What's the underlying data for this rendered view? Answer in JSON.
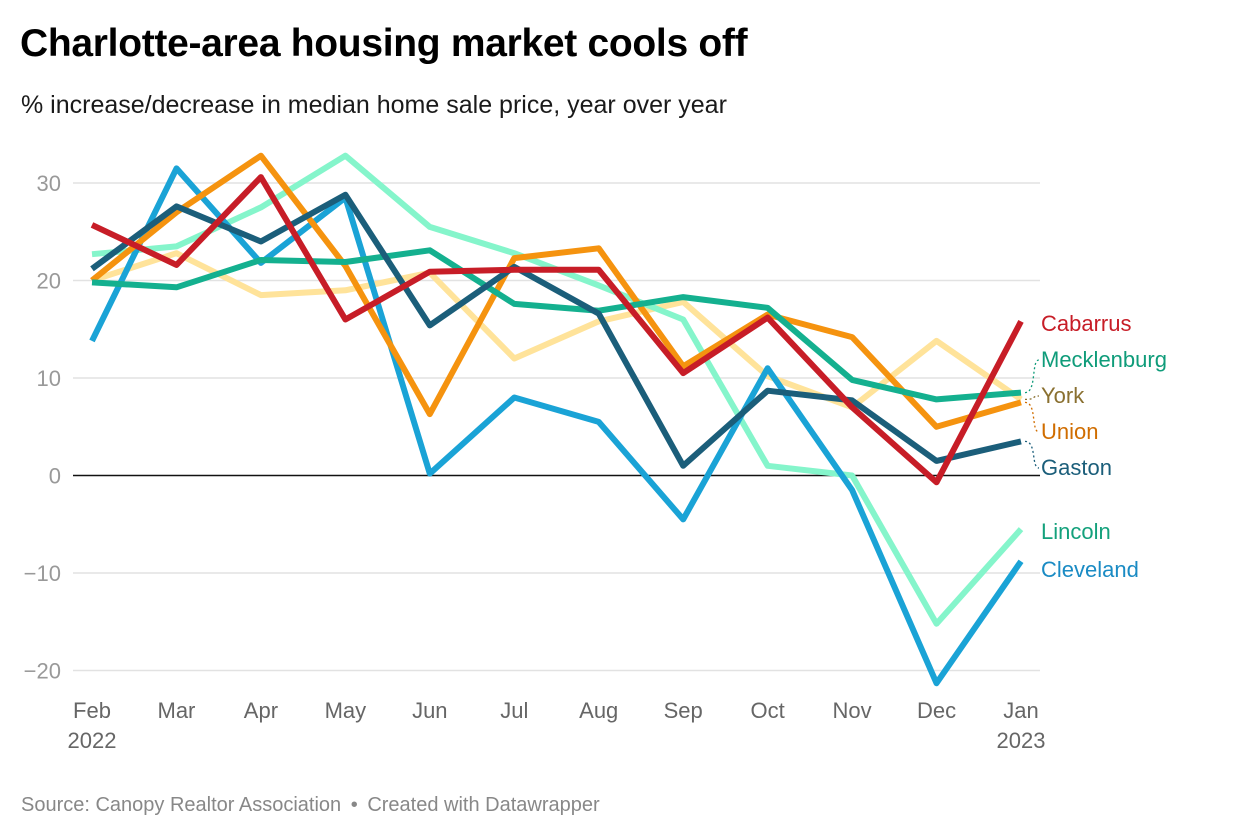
{
  "header": {
    "title": "Charlotte-area housing market cools off",
    "subtitle": "% increase/decrease in median home sale price, year over year"
  },
  "footer": {
    "source": "Source: Canopy Realtor Association",
    "separator": "•",
    "credit": "Created with Datawrapper"
  },
  "chart_data": {
    "type": "line",
    "title": "Charlotte-area housing market cools off",
    "subtitle": "% increase/decrease in median home sale price, year over year",
    "x": [
      "Feb",
      "Mar",
      "Apr",
      "May",
      "Jun",
      "Jul",
      "Aug",
      "Sep",
      "Oct",
      "Nov",
      "Dec",
      "Jan"
    ],
    "x_year_labels": {
      "first": "2022",
      "last": "2023"
    },
    "ylim": [
      -22,
      33
    ],
    "yticks": [
      30,
      20,
      10,
      0,
      -10,
      -20
    ],
    "grid": true,
    "legend": "direct labels at right end of lines",
    "series": [
      {
        "name": "York",
        "color": "#ffe39a",
        "label_color": "#8a7030",
        "values": [
          20.0,
          22.8,
          18.5,
          19.0,
          20.8,
          12.0,
          15.8,
          17.8,
          10.2,
          7.0,
          13.8,
          7.8
        ]
      },
      {
        "name": "Lincoln",
        "color": "#85f5cb",
        "label_color": "#14a17c",
        "values": [
          22.7,
          23.5,
          27.5,
          32.8,
          25.5,
          22.8,
          19.5,
          16.0,
          1.0,
          0.0,
          -15.2,
          -5.5
        ]
      },
      {
        "name": "Cleveland",
        "color": "#1aa3d6",
        "label_color": "#1a8bc4",
        "values": [
          13.8,
          31.5,
          21.8,
          28.5,
          0.2,
          8.0,
          5.5,
          -4.5,
          11.0,
          -1.5,
          -21.3,
          -8.8
        ]
      },
      {
        "name": "Union",
        "color": "#f5930f",
        "label_color": "#d06d00",
        "values": [
          20.0,
          27.0,
          32.8,
          21.5,
          6.3,
          22.3,
          23.3,
          11.2,
          16.5,
          14.2,
          5.0,
          7.5
        ]
      },
      {
        "name": "Mecklenburg",
        "color": "#14b08f",
        "label_color": "#0f9c7a",
        "values": [
          19.8,
          19.3,
          22.1,
          21.9,
          23.1,
          17.6,
          16.9,
          18.3,
          17.2,
          9.8,
          7.8,
          8.5
        ]
      },
      {
        "name": "Gaston",
        "color": "#1b5e7a",
        "label_color": "#1b5e7a",
        "values": [
          21.2,
          27.6,
          24.0,
          28.8,
          15.4,
          21.4,
          16.6,
          1.0,
          8.7,
          7.7,
          1.5,
          3.5
        ]
      },
      {
        "name": "Cabarrus",
        "color": "#c71d27",
        "label_color": "#c71d27",
        "values": [
          25.7,
          21.6,
          30.6,
          16.0,
          20.9,
          21.1,
          21.1,
          10.5,
          16.2,
          7.0,
          -0.7,
          15.8
        ]
      }
    ]
  }
}
